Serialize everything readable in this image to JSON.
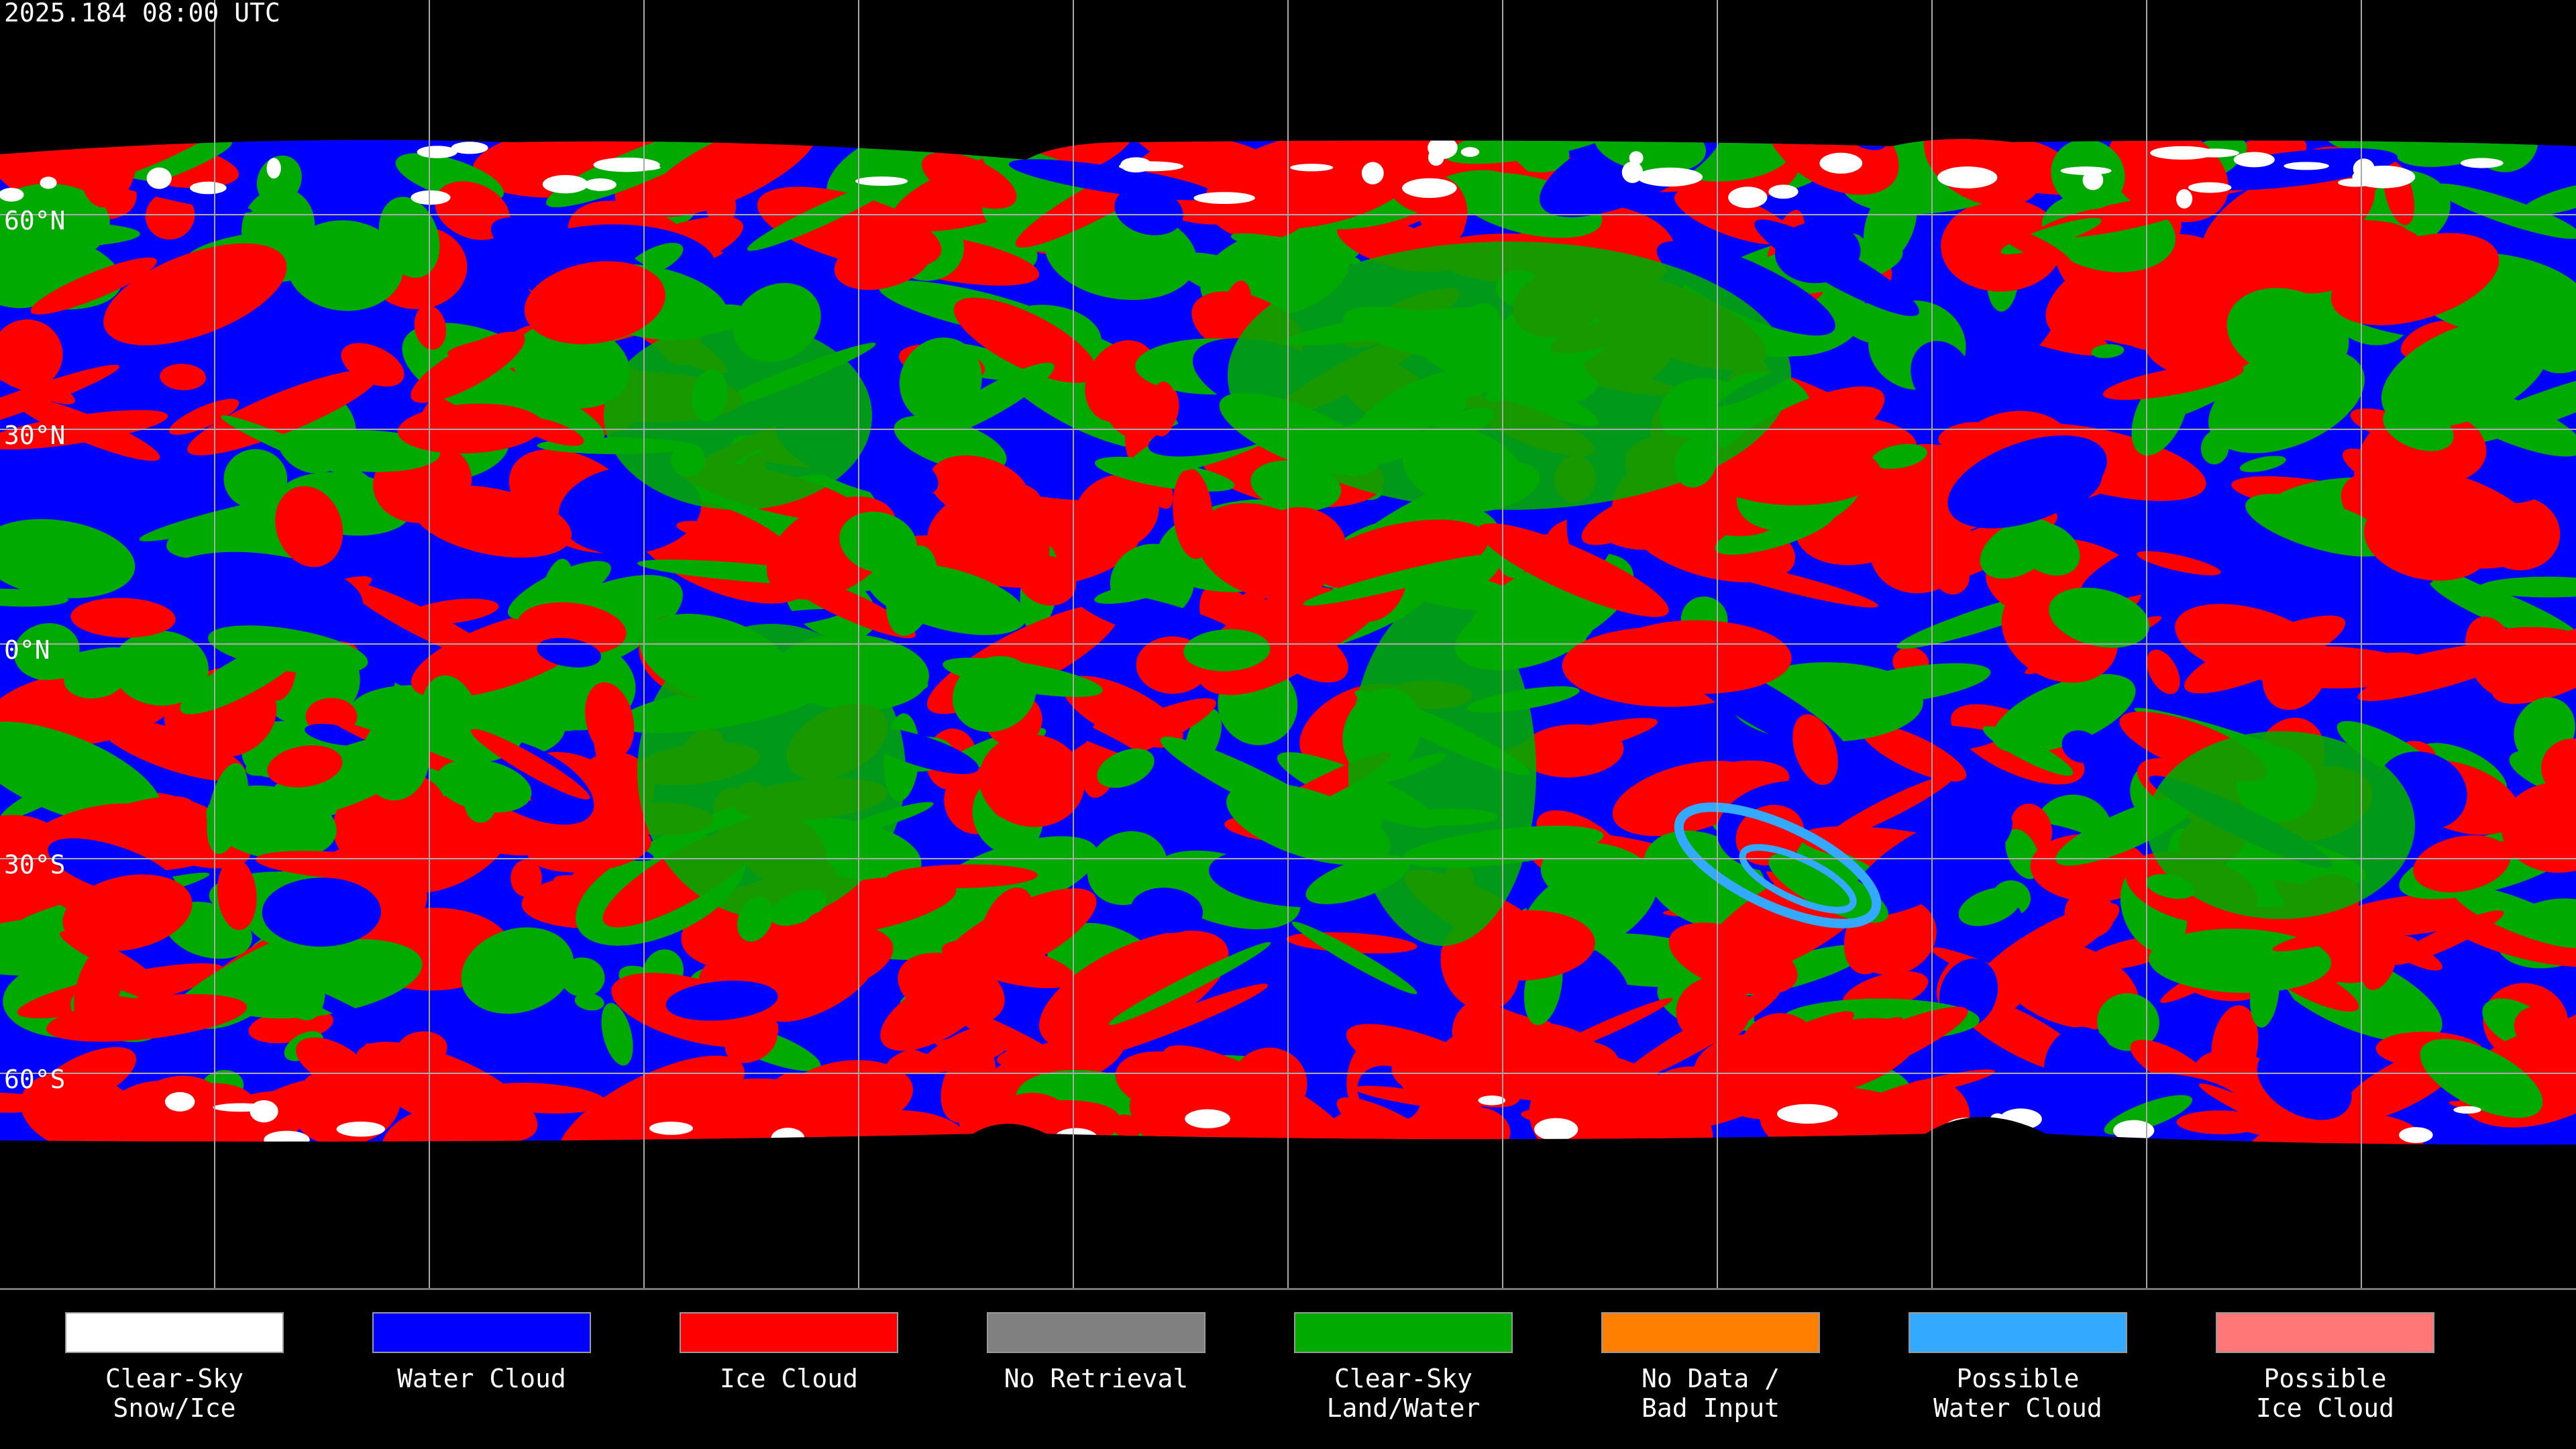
{
  "header": {
    "timestamp": "2025.184 08:00 UTC"
  },
  "latitude_labels": [
    "60°N",
    "30°N",
    "0°N",
    "30°S",
    "60°S"
  ],
  "legend": {
    "items": [
      {
        "lines": [
          "Clear-Sky",
          "Snow/Ice"
        ],
        "color": "#ffffff"
      },
      {
        "lines": [
          "Water Cloud"
        ],
        "color": "#0000ff"
      },
      {
        "lines": [
          "Ice Cloud"
        ],
        "color": "#ff0000"
      },
      {
        "lines": [
          "No Retrieval"
        ],
        "color": "#808080"
      },
      {
        "lines": [
          "Clear-Sky",
          "Land/Water"
        ],
        "color": "#00aa00"
      },
      {
        "lines": [
          "No Data /",
          "Bad Input"
        ],
        "color": "#ff8000"
      },
      {
        "lines": [
          "Possible",
          "Water Cloud"
        ],
        "color": "#33aaff"
      },
      {
        "lines": [
          "Possible",
          "Ice Cloud"
        ],
        "color": "#ff7777"
      }
    ]
  }
}
